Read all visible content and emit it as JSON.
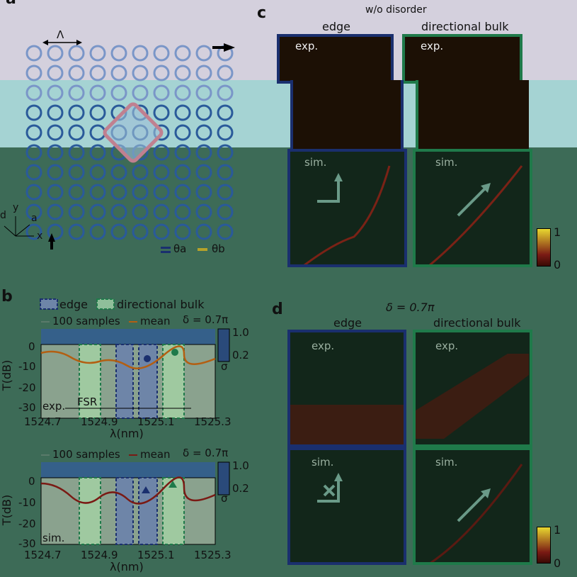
{
  "panels": {
    "a": {
      "label": "a",
      "lattice_period": "Λ",
      "theta_a": "θa",
      "theta_b": "θb",
      "axes": [
        "y",
        "a",
        "d",
        "x"
      ]
    },
    "b": {
      "label": "b"
    },
    "c": {
      "label": "c",
      "title": "w/o disorder",
      "edge": "edge",
      "bulk": "directional bulk"
    },
    "d": {
      "label": "d",
      "title": "δ = 0.7π",
      "edge": "edge",
      "bulk": "directional bulk"
    }
  },
  "legend_b": {
    "edge": "edge",
    "bulk": "directional bulk"
  },
  "plot_top": {
    "legend": [
      "100 samples",
      "mean"
    ],
    "delta": "δ = 0.7π",
    "tag": "exp.",
    "fsr": "FSR",
    "colorbar": {
      "max": "1.0",
      "min": "0.2",
      "label": "σ"
    }
  },
  "plot_bottom": {
    "legend": [
      "100 samples",
      "mean"
    ],
    "delta": "δ = 0.7π",
    "tag": "sim.",
    "colorbar": {
      "max": "1.0",
      "min": "0.2",
      "label": "σ"
    }
  },
  "axes": {
    "ylabel": "T(dB)",
    "xlabel": "λ(nm)",
    "yticks": [
      "0",
      "-10",
      "-20",
      "-30"
    ],
    "xticks": [
      "1524.7",
      "1524.9",
      "1525.1",
      "1525.3"
    ]
  },
  "tags": {
    "exp": "exp.",
    "sim": "sim."
  },
  "colorbar_c": {
    "max": "1",
    "min": "0"
  },
  "colorbar_d": {
    "max": "1",
    "min": "0"
  },
  "colors": {
    "edge": "#1a2f6e",
    "bulk": "#1f7a4a",
    "mean_exp": "#b35f12",
    "mean_sim": "#7a1a14"
  }
}
